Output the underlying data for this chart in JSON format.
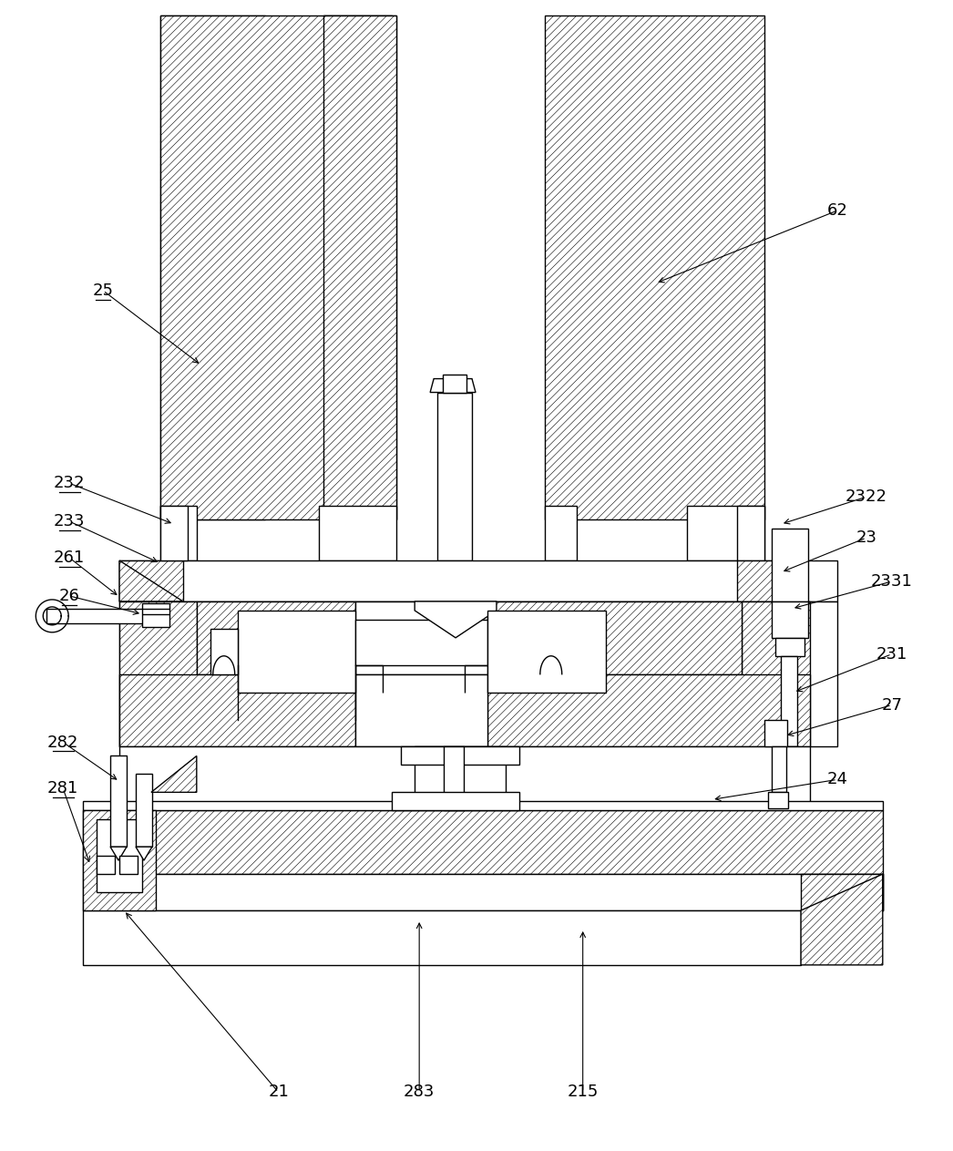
{
  "figure_width": 10.46,
  "figure_height": 12.63,
  "dpi": 100,
  "bg_color": "#ffffff",
  "lc": "#000000",
  "lw": 1.0,
  "hatch_lw": 0.4
}
